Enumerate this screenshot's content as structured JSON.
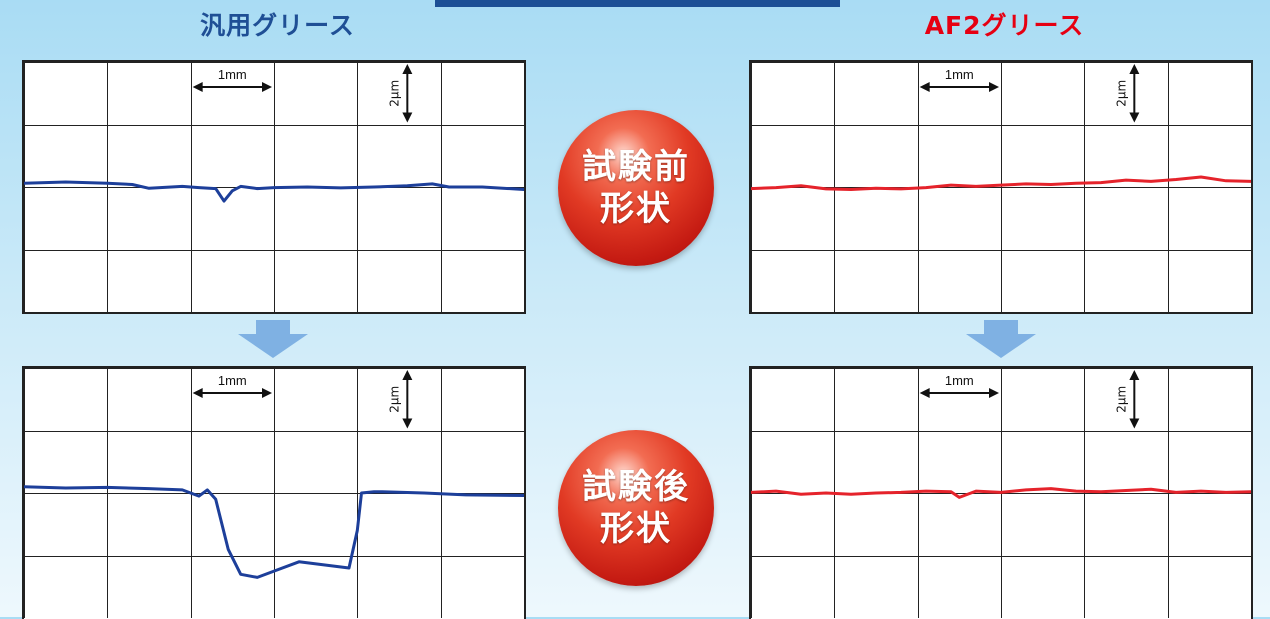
{
  "header": {
    "left_title": "汎用グリース",
    "right_title": "AF2グリース"
  },
  "badges": {
    "before": [
      "試験前",
      "形状"
    ],
    "after": [
      "試験後",
      "形状"
    ]
  },
  "scale": {
    "x_label": "1mm",
    "y_label": "2μm"
  },
  "colors": {
    "general": "#1d3f9a",
    "af2": "#e5232b",
    "arrow": "#7fb1e3",
    "title_blue": "#1f4f95",
    "title_red": "#e60012"
  },
  "chart_data": [
    {
      "type": "line",
      "id": "general_before",
      "xlim": [
        0,
        6
      ],
      "ylim": [
        -4,
        4
      ],
      "x": [
        0,
        0.5,
        1,
        1.3,
        1.5,
        1.9,
        2.1,
        2.3,
        2.4,
        2.5,
        2.6,
        2.8,
        3,
        3.4,
        3.8,
        4.2,
        4.6,
        4.9,
        5.1,
        5.5,
        6
      ],
      "values": [
        0.12,
        0.16,
        0.12,
        0.08,
        -0.04,
        0.02,
        -0.02,
        -0.05,
        -0.45,
        -0.12,
        0.02,
        -0.05,
        -0.02,
        0.0,
        -0.03,
        0.0,
        0.04,
        0.1,
        0.0,
        0.0,
        -0.08
      ]
    },
    {
      "type": "line",
      "id": "af2_before",
      "xlim": [
        0,
        6
      ],
      "ylim": [
        -4,
        4
      ],
      "x": [
        0,
        0.3,
        0.6,
        0.9,
        1.2,
        1.5,
        1.8,
        2.1,
        2.4,
        2.7,
        3.0,
        3.3,
        3.6,
        3.9,
        4.2,
        4.5,
        4.8,
        5.1,
        5.4,
        5.7,
        6
      ],
      "values": [
        -0.05,
        -0.02,
        0.04,
        -0.06,
        -0.08,
        -0.04,
        -0.06,
        -0.02,
        0.06,
        0.02,
        0.06,
        0.1,
        0.08,
        0.12,
        0.14,
        0.22,
        0.18,
        0.24,
        0.32,
        0.2,
        0.18
      ]
    },
    {
      "type": "line",
      "id": "general_after",
      "xlim": [
        0,
        6
      ],
      "ylim": [
        -4,
        4
      ],
      "x": [
        0,
        0.5,
        1,
        1.5,
        1.9,
        2.1,
        2.2,
        2.3,
        2.45,
        2.6,
        2.8,
        3.0,
        3.3,
        3.6,
        3.9,
        4.0,
        4.05,
        4.2,
        4.3,
        4.8,
        5.3,
        6
      ],
      "values": [
        0.2,
        0.16,
        0.18,
        0.14,
        0.1,
        -0.1,
        0.1,
        -0.2,
        -1.8,
        -2.6,
        -2.7,
        -2.5,
        -2.2,
        -2.3,
        -2.4,
        -1.2,
        0.0,
        0.04,
        0.04,
        0.0,
        -0.06,
        -0.08
      ]
    },
    {
      "type": "line",
      "id": "af2_after",
      "xlim": [
        0,
        6
      ],
      "ylim": [
        -4,
        4
      ],
      "x": [
        0,
        0.3,
        0.6,
        0.9,
        1.2,
        1.5,
        1.8,
        2.1,
        2.4,
        2.5,
        2.7,
        3.0,
        3.3,
        3.6,
        3.9,
        4.2,
        4.5,
        4.8,
        5.1,
        5.4,
        5.7,
        6
      ],
      "values": [
        0.02,
        0.06,
        -0.04,
        0.0,
        -0.04,
        0.0,
        0.02,
        0.06,
        0.04,
        -0.14,
        0.06,
        0.02,
        0.1,
        0.14,
        0.06,
        0.04,
        0.08,
        0.12,
        0.02,
        0.06,
        0.02,
        0.04
      ]
    }
  ]
}
